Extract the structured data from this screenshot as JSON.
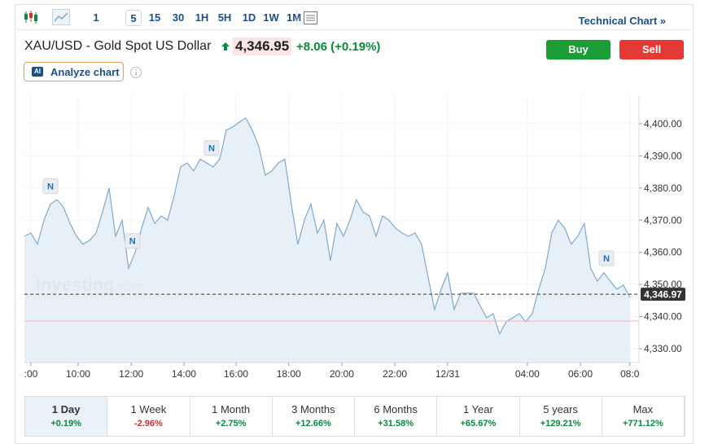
{
  "toolbar": {
    "intervals": [
      "1",
      "5",
      "15",
      "30",
      "1H",
      "5H",
      "1D",
      "1W",
      "1M"
    ],
    "selected": 1,
    "link": "Technical Chart »"
  },
  "header": {
    "title": "XAU/USD - Gold Spot US Dollar",
    "price": "4,346.95",
    "change": "+8.06",
    "change_pct": "(+0.19%)",
    "buy": "Buy",
    "sell": "Sell",
    "ai_badge": "AI",
    "analyze": "Analyze chart"
  },
  "watermark": {
    "brand": "Investing",
    "suffix": ".com"
  },
  "chart_data": {
    "type": "line",
    "series": [
      {
        "color": "#7fa9d0",
        "values": [
          4365,
          4366,
          4362.5,
          4370,
          4375,
          4376.4,
          4374,
          4369,
          4365,
          4362.5,
          4363.7,
          4366,
          4372.6,
          4380,
          4365,
          4370,
          4355,
          4360,
          4367.5,
          4374,
          4369,
          4371.3,
          4370,
          4377.7,
          4386.6,
          4387.8,
          4385.3,
          4389,
          4387.8,
          4386.6,
          4389,
          4398,
          4399,
          4400.5,
          4401.8,
          4398,
          4393,
          4384,
          4385.3,
          4387.8,
          4389,
          4375,
          4362.5,
          4370,
          4375,
          4366,
          4370,
          4357.4,
          4369,
          4365,
          4370,
          4376.4,
          4372.6,
          4371.3,
          4365,
          4371.3,
          4370,
          4367.5,
          4366,
          4365,
          4366,
          4362.5,
          4352.3,
          4342.2,
          4348.5,
          4353.6,
          4342.2,
          4347.3,
          4347.3,
          4347.3,
          4343.4,
          4339.6,
          4340.9,
          4334.6,
          4338.4,
          4339.6,
          4340.9,
          4338.4,
          4340.9,
          4348.5,
          4354.9,
          4366,
          4370,
          4367.5,
          4362.5,
          4365,
          4369,
          4354.9,
          4351,
          4353.6,
          4351,
          4348.5,
          4349.8,
          4346
        ]
      }
    ],
    "xlim": [
      0,
      94.4
    ],
    "xticks": [
      {
        "value": 1,
        "label": ":00"
      },
      {
        "value": 8.25,
        "label": "10:00"
      },
      {
        "value": 16.4,
        "label": "12:00"
      },
      {
        "value": 24.5,
        "label": "14:00"
      },
      {
        "value": 32.5,
        "label": "16:00"
      },
      {
        "value": 40.6,
        "label": "18:00"
      },
      {
        "value": 48.75,
        "label": "20:00"
      },
      {
        "value": 56.9,
        "label": "22:00"
      },
      {
        "value": 65,
        "label": "12/31"
      },
      {
        "value": 77.25,
        "label": "04:00"
      },
      {
        "value": 85.4,
        "label": "06:00"
      },
      {
        "value": 93,
        "label": "08:0"
      }
    ],
    "ylim": [
      4325.7,
      4408.6
    ],
    "yticks": [
      {
        "value": 4330,
        "label": "4,330.00"
      },
      {
        "value": 4340,
        "label": "4,340.00"
      },
      {
        "value": 4350,
        "label": "4,350.00"
      },
      {
        "value": 4360,
        "label": "4,360.00"
      },
      {
        "value": 4370,
        "label": "4,370.00"
      },
      {
        "value": 4380,
        "label": "4,380.00"
      },
      {
        "value": 4390,
        "label": "4,390.00"
      },
      {
        "value": 4400,
        "label": "4,400.00"
      }
    ],
    "current_price": {
      "value": 4346.97,
      "label": "4,346.97"
    },
    "reference_line": 4338.6,
    "news_markers": [
      {
        "value": 4,
        "label": "N"
      },
      {
        "value": 16.6,
        "label": "N"
      },
      {
        "value": 28.75,
        "label": "N"
      },
      {
        "value": 89.4,
        "label": "N"
      }
    ],
    "grid": true
  },
  "periods": [
    {
      "label": "1 Day",
      "change": "+0.19%"
    },
    {
      "label": "1 Week",
      "change": "-2.96%"
    },
    {
      "label": "1 Month",
      "change": "+2.75%"
    },
    {
      "label": "3 Months",
      "change": "+12.66%"
    },
    {
      "label": "6 Months",
      "change": "+31.58%"
    },
    {
      "label": "1 Year",
      "change": "+65.67%"
    },
    {
      "label": "5 years",
      "change": "+129.21%"
    },
    {
      "label": "Max",
      "change": "+771.12%"
    }
  ],
  "selected_period": 0
}
